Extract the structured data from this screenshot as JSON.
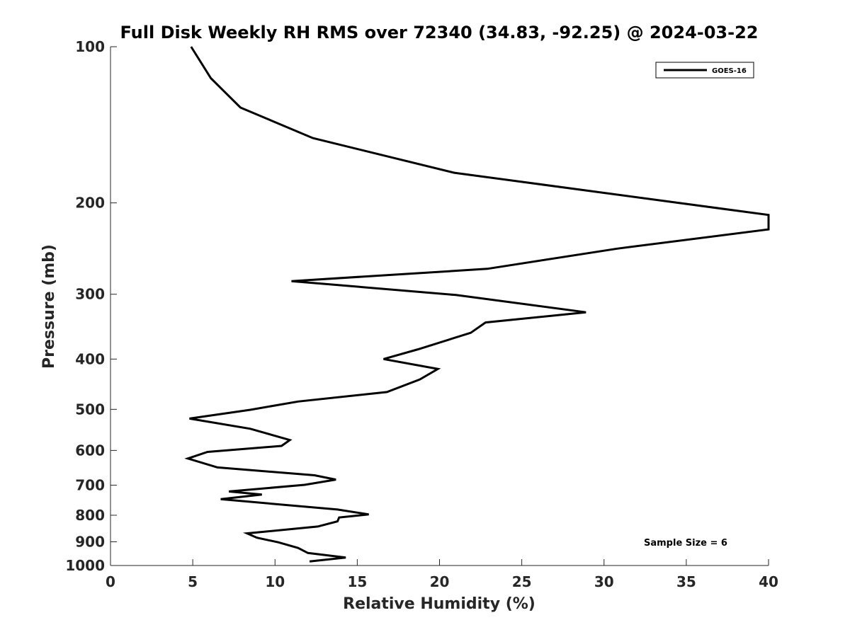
{
  "chart_data": {
    "type": "line",
    "title": "Full Disk Weekly RH RMS over 72340 (34.83, -92.25) @ 2024-03-22",
    "xlabel": "Relative Humidity (%)",
    "ylabel": "Pressure (mb)",
    "xlim": [
      0,
      40
    ],
    "ylim": [
      100,
      1000
    ],
    "y_scale": "log",
    "y_reversed": true,
    "x_ticks": [
      "0",
      "5",
      "10",
      "15",
      "20",
      "25",
      "30",
      "35",
      "40"
    ],
    "y_ticks": [
      "100",
      "200",
      "300",
      "400",
      "500",
      "600",
      "700",
      "800",
      "900",
      "1000"
    ],
    "legend": {
      "position": "top-right",
      "entries": [
        "GOES-16"
      ]
    },
    "annotation": "Sample Size = 6",
    "grid": false,
    "series": [
      {
        "name": "GOES-16",
        "color": "#000000",
        "points": [
          [
            4.9,
            100
          ],
          [
            6.1,
            115
          ],
          [
            7.9,
            131
          ],
          [
            12.3,
            150
          ],
          [
            20.9,
            175
          ],
          [
            40.0,
            211
          ],
          [
            40.0,
            225
          ],
          [
            30.8,
            245
          ],
          [
            22.9,
            268
          ],
          [
            11.0,
            283
          ],
          [
            21.0,
            301
          ],
          [
            28.9,
            325
          ],
          [
            22.8,
            340
          ],
          [
            21.9,
            356
          ],
          [
            18.7,
            383
          ],
          [
            16.6,
            400
          ],
          [
            19.9,
            418
          ],
          [
            18.8,
            438
          ],
          [
            16.8,
            463
          ],
          [
            11.4,
            483
          ],
          [
            8.5,
            501
          ],
          [
            4.8,
            521
          ],
          [
            8.5,
            545
          ],
          [
            10.9,
            573
          ],
          [
            10.4,
            588
          ],
          [
            5.9,
            604
          ],
          [
            4.7,
            622
          ],
          [
            6.5,
            647
          ],
          [
            12.4,
            670
          ],
          [
            13.7,
            683
          ],
          [
            11.8,
            699
          ],
          [
            7.2,
            720
          ],
          [
            9.2,
            730
          ],
          [
            6.7,
            745
          ],
          [
            13.8,
            780
          ],
          [
            15.7,
            797
          ],
          [
            13.9,
            808
          ],
          [
            13.8,
            822
          ],
          [
            12.6,
            841
          ],
          [
            8.3,
            867
          ],
          [
            8.9,
            884
          ],
          [
            10.2,
            902
          ],
          [
            11.4,
            925
          ],
          [
            12.0,
            946
          ],
          [
            14.3,
            965
          ],
          [
            12.1,
            982
          ]
        ]
      }
    ]
  }
}
